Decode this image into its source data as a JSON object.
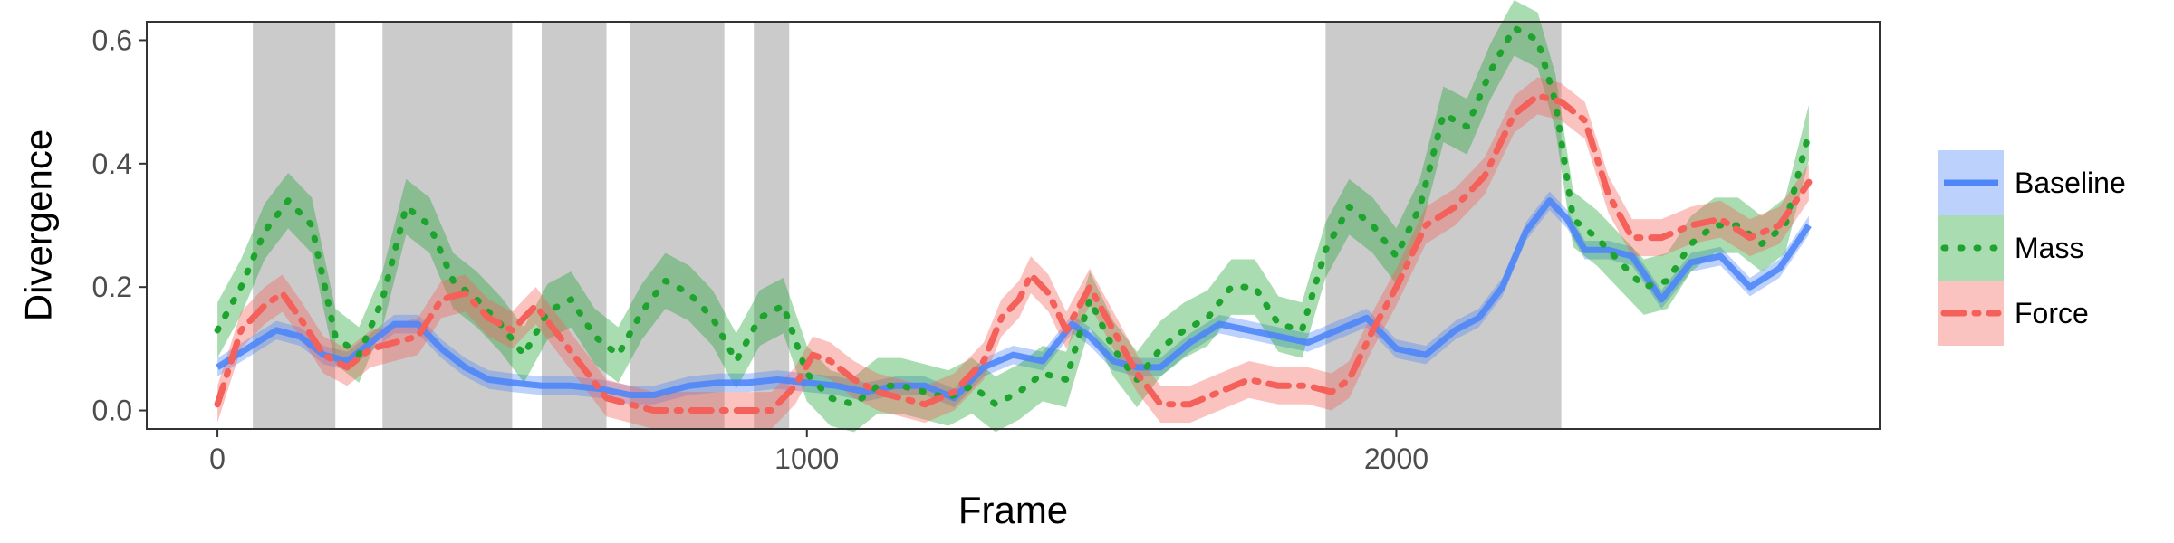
{
  "chart_data": {
    "type": "line",
    "xlabel": "Frame",
    "ylabel": "Divergence",
    "xlim": [
      -120,
      2820
    ],
    "ylim": [
      -0.03,
      0.63
    ],
    "x_ticks": [
      0,
      1000,
      2000
    ],
    "x_tick_labels": [
      "0",
      "1000",
      "2000"
    ],
    "y_ticks": [
      0.0,
      0.2,
      0.4,
      0.6
    ],
    "y_tick_labels": [
      "0.0",
      "0.2",
      "0.4",
      "0.6"
    ],
    "grid": false,
    "legend_position": "right",
    "shaded_intervals": [
      [
        60,
        200
      ],
      [
        280,
        500
      ],
      [
        550,
        660
      ],
      [
        700,
        860
      ],
      [
        910,
        970
      ],
      [
        1880,
        2280
      ]
    ],
    "series": [
      {
        "name": "Baseline",
        "color": "#4F86F7",
        "dash": "solid",
        "x": [
          0,
          50,
          100,
          140,
          180,
          220,
          260,
          300,
          340,
          380,
          420,
          460,
          500,
          550,
          600,
          650,
          700,
          740,
          800,
          850,
          900,
          950,
          1000,
          1050,
          1100,
          1150,
          1200,
          1250,
          1300,
          1350,
          1400,
          1450,
          1480,
          1520,
          1560,
          1600,
          1650,
          1700,
          1750,
          1800,
          1850,
          1900,
          1950,
          2000,
          2050,
          2100,
          2140,
          2180,
          2220,
          2260,
          2290,
          2320,
          2360,
          2400,
          2450,
          2500,
          2550,
          2600,
          2650,
          2700
        ],
        "y": [
          0.07,
          0.1,
          0.13,
          0.12,
          0.09,
          0.08,
          0.11,
          0.14,
          0.14,
          0.1,
          0.07,
          0.05,
          0.045,
          0.04,
          0.04,
          0.035,
          0.025,
          0.025,
          0.04,
          0.045,
          0.045,
          0.05,
          0.045,
          0.04,
          0.03,
          0.04,
          0.04,
          0.02,
          0.07,
          0.09,
          0.08,
          0.14,
          0.12,
          0.08,
          0.07,
          0.07,
          0.11,
          0.14,
          0.13,
          0.12,
          0.11,
          0.13,
          0.15,
          0.1,
          0.09,
          0.13,
          0.15,
          0.2,
          0.29,
          0.34,
          0.31,
          0.26,
          0.26,
          0.25,
          0.18,
          0.24,
          0.25,
          0.2,
          0.23,
          0.3
        ],
        "band": 0.015
      },
      {
        "name": "Mass",
        "color": "#1EA32F",
        "dash": "dotted",
        "x": [
          0,
          40,
          80,
          120,
          160,
          200,
          240,
          280,
          320,
          360,
          400,
          440,
          480,
          520,
          560,
          600,
          640,
          680,
          720,
          760,
          800,
          840,
          880,
          920,
          960,
          1000,
          1040,
          1080,
          1120,
          1160,
          1200,
          1240,
          1280,
          1320,
          1360,
          1400,
          1440,
          1480,
          1520,
          1560,
          1600,
          1640,
          1680,
          1720,
          1760,
          1800,
          1840,
          1880,
          1920,
          1960,
          2000,
          2040,
          2080,
          2120,
          2160,
          2200,
          2240,
          2270,
          2300,
          2340,
          2380,
          2420,
          2460,
          2500,
          2540,
          2580,
          2620,
          2660,
          2700
        ],
        "y": [
          0.13,
          0.2,
          0.29,
          0.34,
          0.3,
          0.12,
          0.09,
          0.18,
          0.33,
          0.3,
          0.21,
          0.18,
          0.14,
          0.09,
          0.16,
          0.18,
          0.12,
          0.09,
          0.16,
          0.21,
          0.19,
          0.15,
          0.08,
          0.15,
          0.17,
          0.06,
          0.02,
          0.01,
          0.04,
          0.04,
          0.03,
          0.02,
          0.04,
          0.01,
          0.03,
          0.06,
          0.05,
          0.18,
          0.1,
          0.05,
          0.1,
          0.13,
          0.15,
          0.2,
          0.2,
          0.14,
          0.13,
          0.26,
          0.33,
          0.3,
          0.25,
          0.33,
          0.48,
          0.46,
          0.55,
          0.62,
          0.6,
          0.5,
          0.31,
          0.28,
          0.24,
          0.2,
          0.21,
          0.27,
          0.3,
          0.3,
          0.27,
          0.3,
          0.45
        ],
        "band": 0.045
      },
      {
        "name": "Force",
        "color": "#F4605A",
        "dash": "dashdot",
        "x": [
          0,
          40,
          80,
          110,
          140,
          180,
          220,
          260,
          300,
          340,
          380,
          420,
          460,
          500,
          540,
          580,
          620,
          660,
          700,
          740,
          780,
          820,
          860,
          900,
          940,
          980,
          1010,
          1040,
          1080,
          1120,
          1160,
          1200,
          1250,
          1300,
          1330,
          1360,
          1380,
          1410,
          1440,
          1480,
          1520,
          1560,
          1600,
          1650,
          1700,
          1750,
          1800,
          1850,
          1890,
          1920,
          1960,
          2000,
          2050,
          2100,
          2150,
          2200,
          2240,
          2280,
          2320,
          2360,
          2400,
          2450,
          2500,
          2550,
          2600,
          2650,
          2700
        ],
        "y": [
          0.01,
          0.13,
          0.17,
          0.19,
          0.15,
          0.09,
          0.07,
          0.1,
          0.11,
          0.12,
          0.18,
          0.19,
          0.15,
          0.13,
          0.17,
          0.12,
          0.07,
          0.02,
          0.01,
          0.0,
          0.0,
          0.0,
          0.0,
          0.0,
          0.0,
          0.04,
          0.09,
          0.08,
          0.05,
          0.03,
          0.02,
          0.01,
          0.03,
          0.08,
          0.15,
          0.18,
          0.22,
          0.19,
          0.13,
          0.2,
          0.13,
          0.06,
          0.01,
          0.01,
          0.03,
          0.05,
          0.04,
          0.04,
          0.03,
          0.05,
          0.13,
          0.2,
          0.3,
          0.33,
          0.38,
          0.48,
          0.51,
          0.5,
          0.47,
          0.35,
          0.28,
          0.28,
          0.3,
          0.31,
          0.28,
          0.3,
          0.37
        ],
        "band": 0.03
      }
    ]
  }
}
